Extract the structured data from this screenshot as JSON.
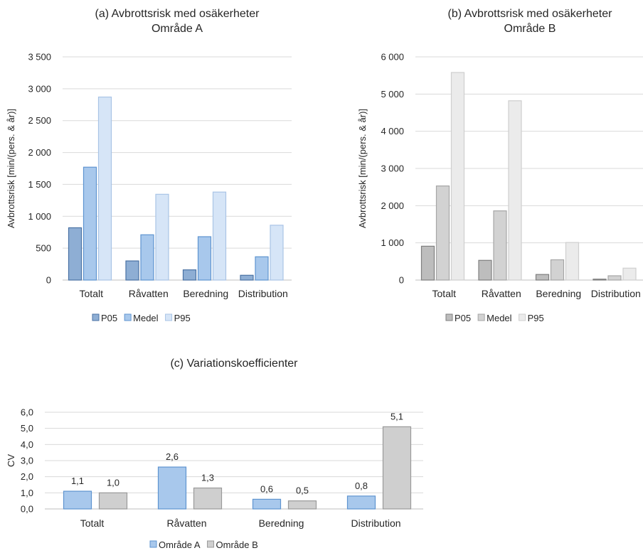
{
  "chart_data": [
    {
      "type": "bar",
      "title": "(a) Avbrottsrisk med osäkerheter",
      "subtitle": "Område A",
      "xlabel": "",
      "ylabel": "Avbrottsrisk [min/(pers. & år)]",
      "ylim": [
        0,
        3500
      ],
      "yticks": [
        0,
        500,
        1000,
        1500,
        2000,
        2500,
        3000,
        3500
      ],
      "ytick_labels": [
        "0",
        "500",
        "1 000",
        "1 500",
        "2 000",
        "2 500",
        "3 000",
        "3 500"
      ],
      "grid": true,
      "legend": "bottom",
      "categories": [
        "Totalt",
        "Råvatten",
        "Beredning",
        "Distribution"
      ],
      "series": [
        {
          "name": "P05",
          "values": [
            820,
            300,
            160,
            75
          ],
          "fill": "#8eaed4",
          "stroke": "#4a72a4"
        },
        {
          "name": "Medel",
          "values": [
            1770,
            710,
            680,
            365
          ],
          "fill": "#a8c8ec",
          "stroke": "#5f94d0"
        },
        {
          "name": "P95",
          "values": [
            2870,
            1345,
            1380,
            860
          ],
          "fill": "#d6e5f7",
          "stroke": "#a9c4e6"
        }
      ]
    },
    {
      "type": "bar",
      "title": "(b) Avbrottsrisk med osäkerheter",
      "subtitle": "Område B",
      "xlabel": "",
      "ylabel": "Avbrottsrisk [min/(pers. & år)]",
      "ylim": [
        0,
        6000
      ],
      "yticks": [
        0,
        1000,
        2000,
        3000,
        4000,
        5000,
        6000
      ],
      "ytick_labels": [
        "0",
        "1 000",
        "2 000",
        "3 000",
        "4 000",
        "5 000",
        "6 000"
      ],
      "grid": true,
      "legend": "bottom",
      "categories": [
        "Totalt",
        "Råvatten",
        "Beredning",
        "Distribution"
      ],
      "series": [
        {
          "name": "P05",
          "values": [
            910,
            530,
            150,
            25
          ],
          "fill": "#bdbdbd",
          "stroke": "#7f7f7f"
        },
        {
          "name": "Medel",
          "values": [
            2530,
            1860,
            545,
            115
          ],
          "fill": "#d2d2d2",
          "stroke": "#a6a6a6"
        },
        {
          "name": "P95",
          "values": [
            5580,
            4820,
            1010,
            320
          ],
          "fill": "#ebebeb",
          "stroke": "#cfcfcf"
        }
      ]
    },
    {
      "type": "bar",
      "title": "(c) Variationskoefficienter",
      "xlabel": "",
      "ylabel": "CV",
      "ylim": [
        0,
        6
      ],
      "yticks": [
        0,
        1,
        2,
        3,
        4,
        5,
        6
      ],
      "ytick_labels": [
        "0,0",
        "1,0",
        "2,0",
        "3,0",
        "4,0",
        "5,0",
        "6,0"
      ],
      "grid": true,
      "legend": "bottom",
      "categories": [
        "Totalt",
        "Råvatten",
        "Beredning",
        "Distribution"
      ],
      "series": [
        {
          "name": "Område A",
          "values": [
            1.1,
            2.6,
            0.6,
            0.8
          ],
          "labels": [
            "1,1",
            "2,6",
            "0,6",
            "0,8"
          ],
          "fill": "#a8c8ec",
          "stroke": "#5f94d0"
        },
        {
          "name": "Område B",
          "values": [
            1.0,
            1.3,
            0.5,
            5.1
          ],
          "labels": [
            "1,0",
            "1,3",
            "0,5",
            "5,1"
          ],
          "fill": "#cfcfcf",
          "stroke": "#9a9a9a"
        }
      ]
    }
  ]
}
